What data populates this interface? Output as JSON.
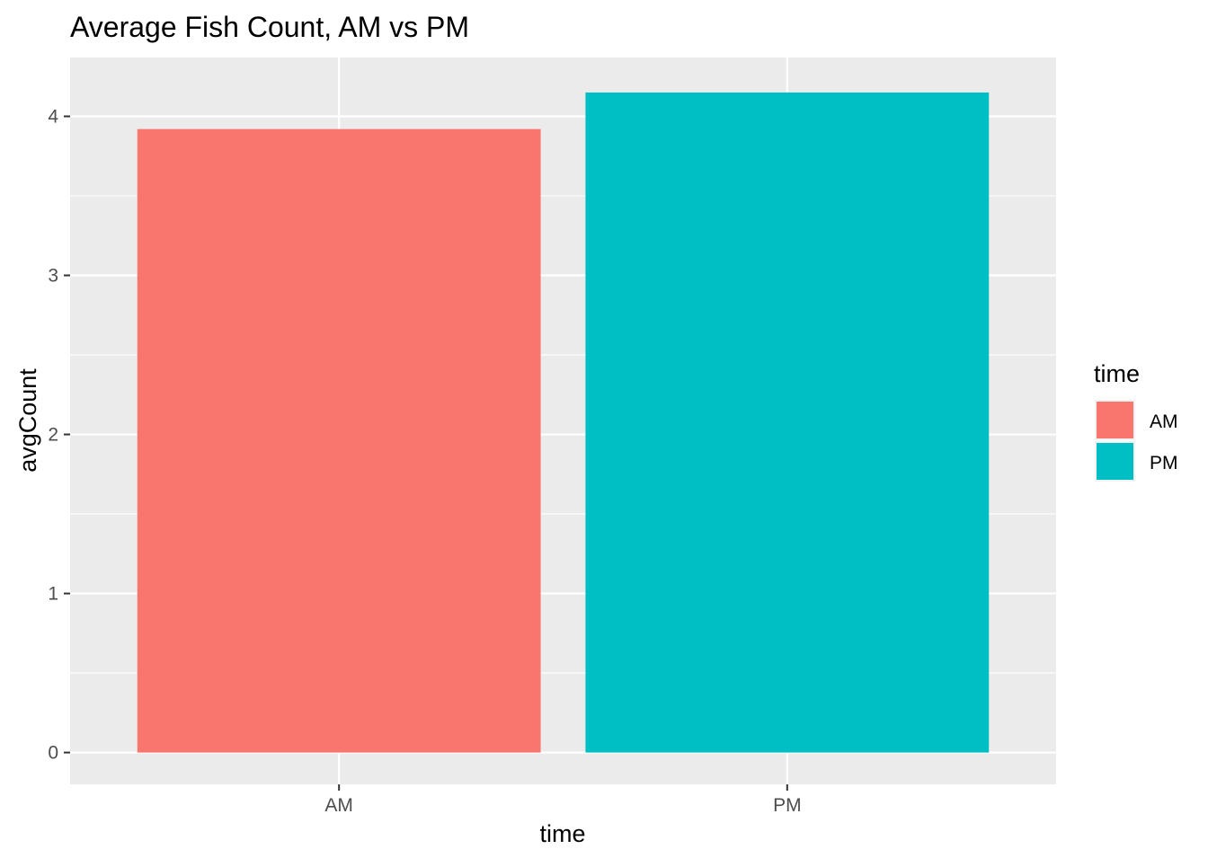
{
  "chart_data": {
    "type": "bar",
    "title": "Average Fish Count, AM vs PM",
    "xlabel": "time",
    "ylabel": "avgCount",
    "categories": [
      "AM",
      "PM"
    ],
    "values": [
      3.92,
      4.15
    ],
    "colors": [
      "#F8766D",
      "#00BFC4"
    ],
    "ylim": [
      -0.2,
      4.37
    ],
    "yticks": [
      0,
      1,
      2,
      3,
      4
    ],
    "grid": true,
    "legend": {
      "title": "time",
      "placement": "right",
      "items": [
        {
          "label": "AM",
          "color": "#F8766D"
        },
        {
          "label": "PM",
          "color": "#00BFC4"
        }
      ]
    }
  }
}
